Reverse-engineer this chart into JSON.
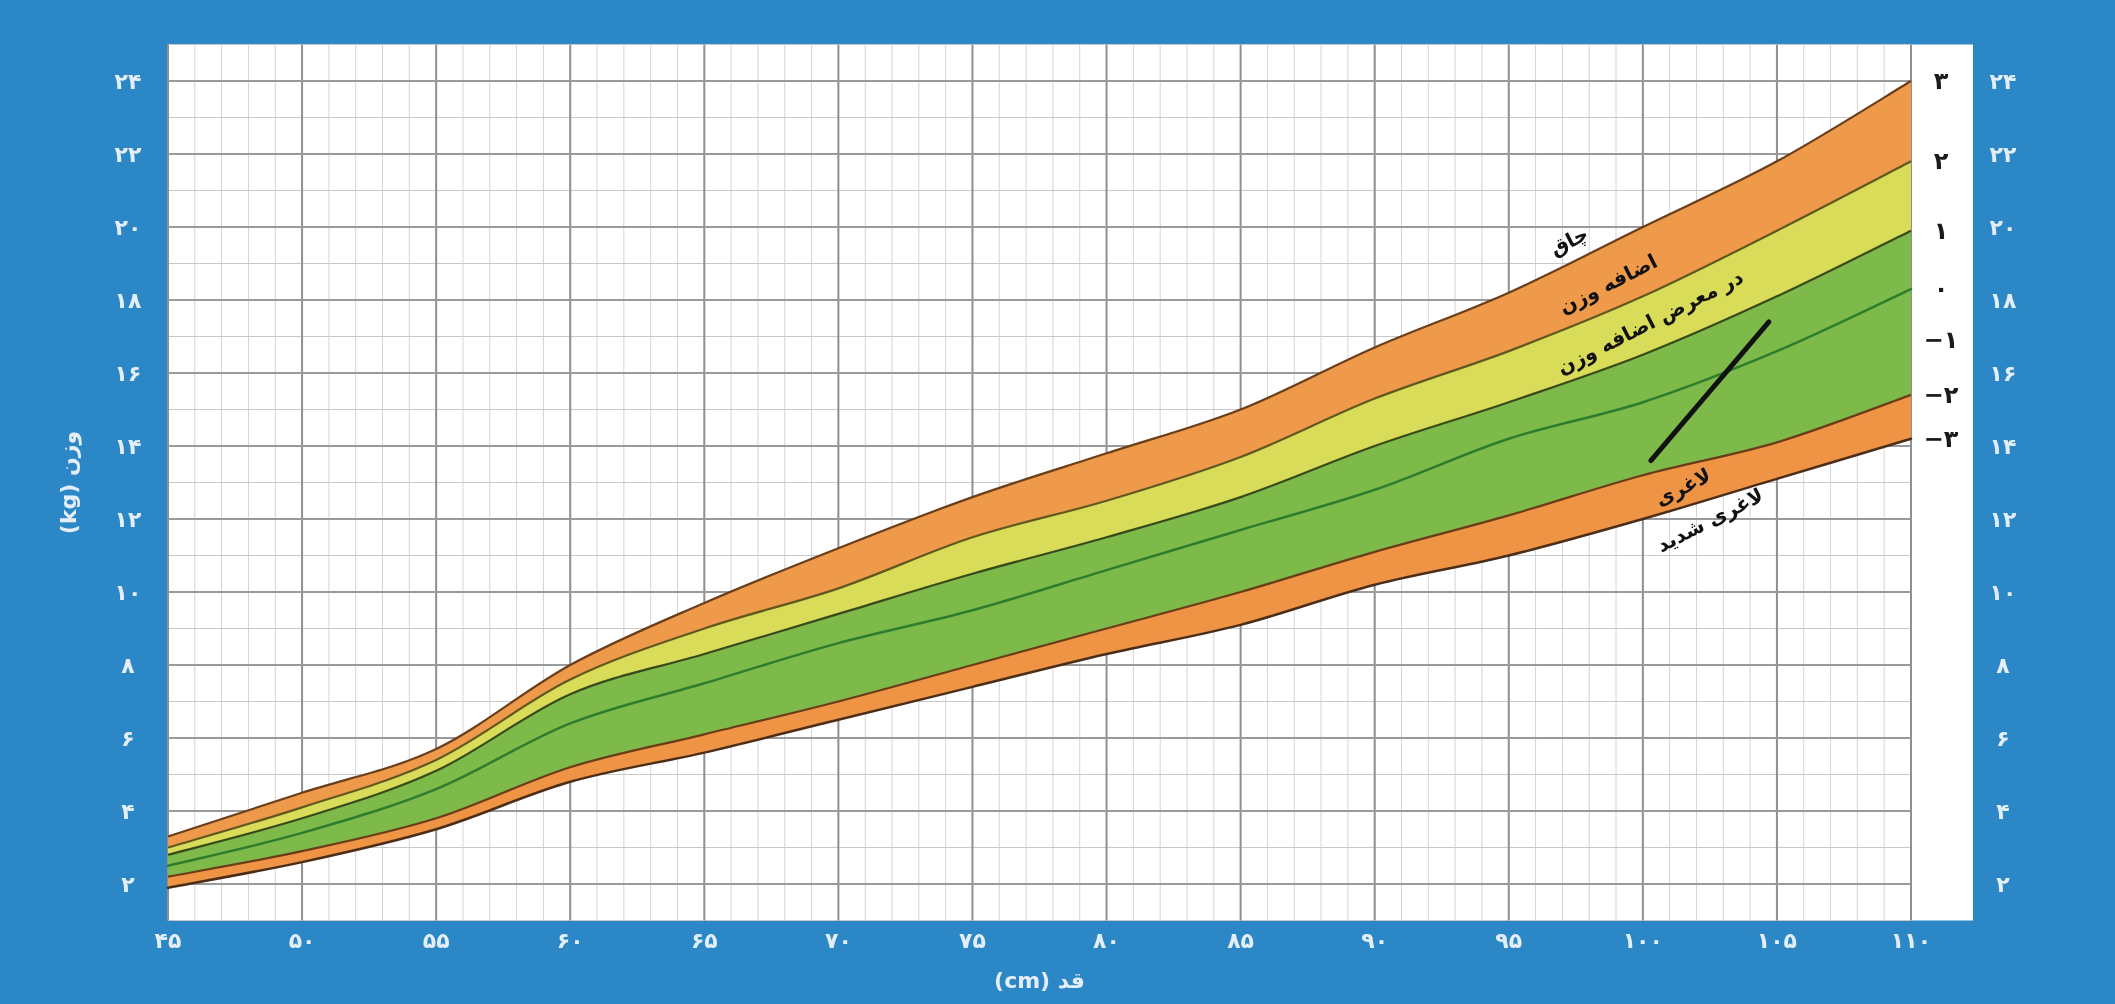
{
  "chart_data": {
    "type": "line",
    "xlabel": "قد (cm)",
    "ylabel": "وزن (kg)",
    "x": [
      45,
      50,
      55,
      60,
      65,
      70,
      75,
      80,
      85,
      90,
      95,
      100,
      105,
      110
    ],
    "xlim": [
      45,
      110
    ],
    "ylim": [
      1,
      25
    ],
    "y2lim": [
      1,
      25
    ],
    "xticks": [
      {
        "value": 45,
        "label": "۴۵"
      },
      {
        "value": 50,
        "label": "۵۰"
      },
      {
        "value": 55,
        "label": "۵۵"
      },
      {
        "value": 60,
        "label": "۶۰"
      },
      {
        "value": 65,
        "label": "۶۵"
      },
      {
        "value": 70,
        "label": "۷۰"
      },
      {
        "value": 75,
        "label": "۷۵"
      },
      {
        "value": 80,
        "label": "۸۰"
      },
      {
        "value": 85,
        "label": "۸۵"
      },
      {
        "value": 90,
        "label": "۹۰"
      },
      {
        "value": 95,
        "label": "۹۵"
      },
      {
        "value": 100,
        "label": "۱۰۰"
      },
      {
        "value": 105,
        "label": "۱۰۵"
      },
      {
        "value": 110,
        "label": "۱۱۰"
      }
    ],
    "yticks": [
      {
        "value": 2,
        "label": "۲"
      },
      {
        "value": 4,
        "label": "۴"
      },
      {
        "value": 6,
        "label": "۶"
      },
      {
        "value": 8,
        "label": "۸"
      },
      {
        "value": 10,
        "label": "۱۰"
      },
      {
        "value": 12,
        "label": "۱۲"
      },
      {
        "value": 14,
        "label": "۱۴"
      },
      {
        "value": 16,
        "label": "۱۶"
      },
      {
        "value": 18,
        "label": "۱۸"
      },
      {
        "value": 20,
        "label": "۲۰"
      },
      {
        "value": 22,
        "label": "۲۲"
      },
      {
        "value": 24,
        "label": "۲۴"
      }
    ],
    "y2ticks": [
      {
        "value": 2,
        "label": "۲"
      },
      {
        "value": 4,
        "label": "۴"
      },
      {
        "value": 6,
        "label": "۶"
      },
      {
        "value": 8,
        "label": "۸"
      },
      {
        "value": 10,
        "label": "۱۰"
      },
      {
        "value": 12,
        "label": "۱۲"
      },
      {
        "value": 14,
        "label": "۱۴"
      },
      {
        "value": 16,
        "label": "۱۶"
      },
      {
        "value": 18,
        "label": "۱۸"
      },
      {
        "value": 20,
        "label": "۲۰"
      },
      {
        "value": 22,
        "label": "۲۲"
      },
      {
        "value": 24,
        "label": "۲۴"
      }
    ],
    "grid": true,
    "series": [
      {
        "name": "۳",
        "type": "area",
        "color": "#ee9a4a",
        "values": [
          3.3,
          4.5,
          5.7,
          8.0,
          9.7,
          11.2,
          12.6,
          13.8,
          15.0,
          16.7,
          18.2,
          20.0,
          21.8,
          24.0
        ]
      },
      {
        "name": "۲",
        "type": "area",
        "color": "#d8dc58",
        "values": [
          3.0,
          4.1,
          5.4,
          7.6,
          9.0,
          10.1,
          11.5,
          12.5,
          13.7,
          15.3,
          16.6,
          18.1,
          19.9,
          21.8
        ]
      },
      {
        "name": "۱",
        "type": "area",
        "color": "#7dba4a",
        "values": [
          2.8,
          3.8,
          5.1,
          7.2,
          8.3,
          9.4,
          10.5,
          11.5,
          12.6,
          14.0,
          15.2,
          16.5,
          18.1,
          19.9
        ]
      },
      {
        "name": "−۲",
        "type": "area",
        "color": "#ef9445",
        "values": [
          2.2,
          2.9,
          3.8,
          5.2,
          6.1,
          7.0,
          8.0,
          9.0,
          10.0,
          11.1,
          12.1,
          13.2,
          14.1,
          15.4
        ]
      },
      {
        "name": "−۳",
        "color": "#4a2e1a",
        "values": [
          1.9,
          2.6,
          3.5,
          4.8,
          5.6,
          6.5,
          7.4,
          8.3,
          9.1,
          10.2,
          11.0,
          12.0,
          13.1,
          14.2
        ]
      },
      {
        "name": "۰",
        "color": "#2e7d2e",
        "values": [
          2.5,
          3.4,
          4.6,
          6.4,
          7.5,
          8.6,
          9.5,
          10.6,
          11.7,
          12.8,
          14.2,
          15.2,
          16.6,
          18.3
        ]
      },
      {
        "color": "#111111",
        "x": [
          100.3,
          102.5,
          104.7
        ],
        "values": [
          13.6,
          15.5,
          17.4
        ]
      }
    ],
    "annotations": [
      "چاق",
      "اضافه وزن",
      "در معرض اضافه وزن",
      "لاغری",
      "لاغری شدید",
      {
        "text": "−۱",
        "x": 110,
        "y": 16.9
      }
    ]
  }
}
